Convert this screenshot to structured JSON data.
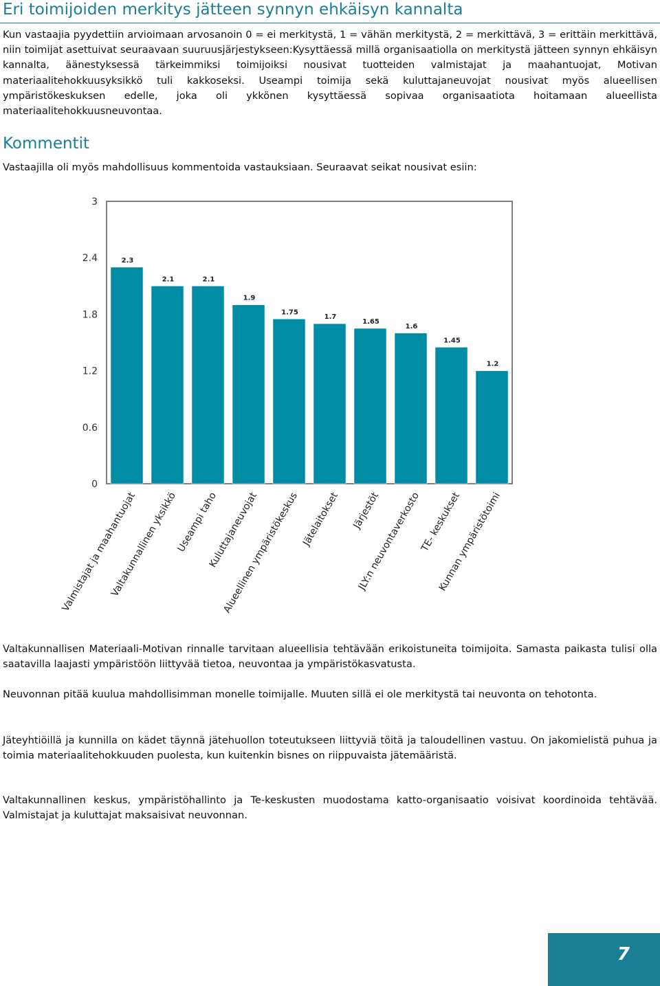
{
  "title": "Eri toimijoiden merkitys jätteen synnyn ehkäisyn kannalta",
  "intro": "Kun vastaajia pyydettiin arvioimaan arvosanoin 0 = ei merkitystä, 1 = vähän merkitystä, 2 = merkittävä, 3 = erittäin merkittävä, niin toimijat asettuivat seuraavaan suuruusjärjestykseen:Kysyttäessä millä organisaatiolla on merkitystä jätteen synnyn ehkäisyn kannalta, äänestyksessä tärkeimmiksi toimijoiksi nousivat tuotteiden valmistajat ja maahantuojat, Motivan materiaalitehokkuusyksikkö tuli kakkoseksi. Useampi toimija sekä kuluttajaneuvojat nousivat myös alueellisen ympäristökeskuksen edelle, joka oli ykkönen kysyttäessä sopivaa organisaatiota hoitamaan alueellista materiaalitehokkuusneuvontaa.",
  "section_title": "Kommentit",
  "section_intro": "Vastaajilla oli myös mahdollisuus kommentoida vastauksiaan. Seuraavat seikat nousivat esiin:",
  "chart_data": {
    "type": "bar",
    "categories": [
      "Valmistajat ja maahantuojat",
      "Valtakunnallinen yksikkö",
      "Useampi taho",
      "Kuluttajaneuvojat",
      "Alueellinen ympäristökeskus",
      "Jätelaitokset",
      "Järjestöt",
      "JLY:n neuvontaverkosto",
      "TE- keskukset",
      "Kunnan ympäristötoimi"
    ],
    "values": [
      2.3,
      2.1,
      2.1,
      1.9,
      1.75,
      1.7,
      1.65,
      1.6,
      1.45,
      1.2
    ],
    "value_labels": [
      "2.3",
      "2.1",
      "2.1",
      "1.9",
      "1.75",
      "1.7",
      "1.65",
      "1.6",
      "1.45",
      "1.2"
    ],
    "y_ticks": [
      0,
      0.6,
      1.2,
      1.8,
      2.4,
      3
    ],
    "y_tick_labels": [
      "0",
      "0.6",
      "1.2",
      "1.8",
      "2.4",
      "3"
    ],
    "ylim": [
      0,
      3
    ],
    "title": "",
    "xlabel": "",
    "ylabel": "",
    "grid": false,
    "legend": "none",
    "bar_color": "#008ca5"
  },
  "paragraphs": [
    "Valtakunnallisen Materiaali-Motivan rinnalle tarvitaan alueellisia tehtävään erikoistuneita toimijoita. Samasta paikasta tulisi olla saatavilla laajasti ympäristöön liittyvää tietoa, neuvontaa ja ympäristökasvatusta.",
    "Neuvonnan pitää kuulua mahdollisimman monelle toimijalle. Muuten sillä ei ole merkitystä tai neuvonta on tehotonta.",
    "Jäteyhtiöillä ja kunnilla on kädet täynnä jätehuollon toteutukseen liittyviä töitä ja taloudellinen vastuu. On jakomielistä puhua ja toimia materiaalitehokkuuden puolesta, kun kuitenkin bisnes on riippuvaista jätemääristä.",
    "Valtakunnallinen keskus, ympäristöhallinto ja Te-keskusten muodostama katto-organisaatio voisivat koordinoida tehtävää. Valmistajat ja kuluttajat maksaisivat neuvonnan."
  ],
  "page_number": "7",
  "accent_color": "#1a7f95"
}
